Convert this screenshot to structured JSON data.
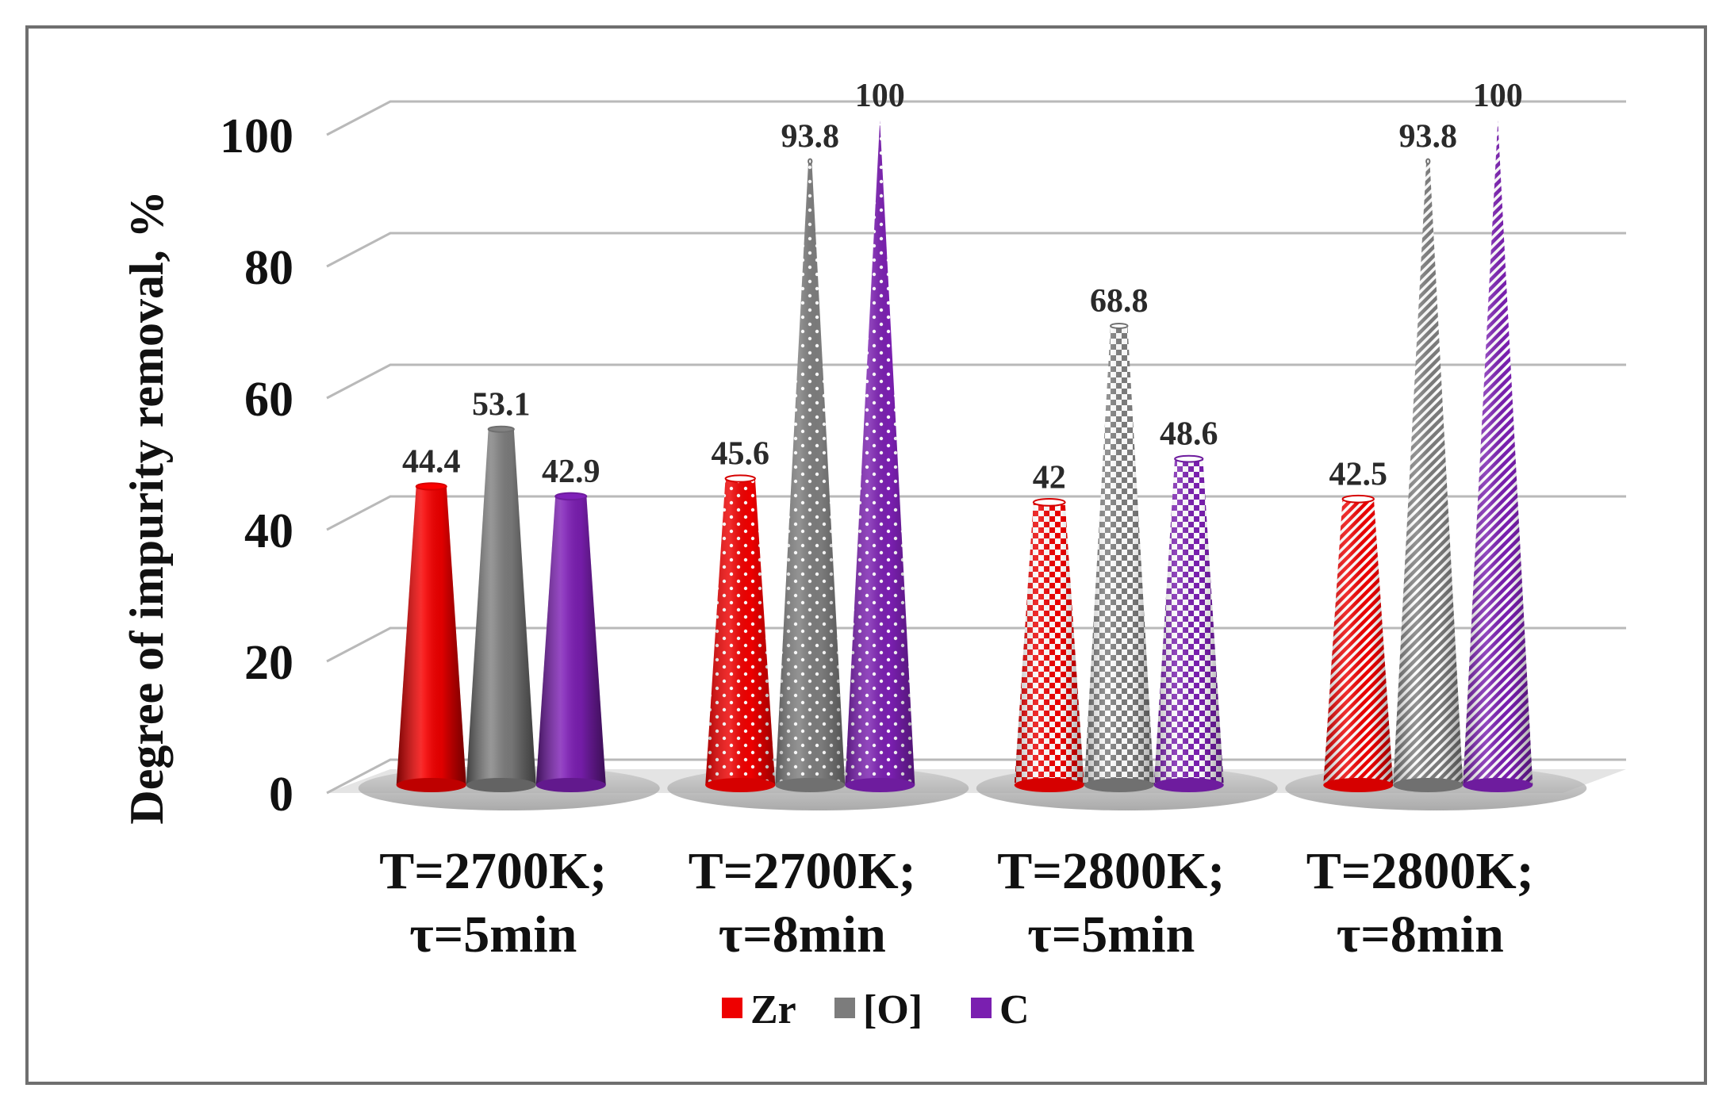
{
  "chart_data": {
    "type": "bar",
    "style": "3d-cone",
    "categories": [
      "T=2700K;\nτ=5min",
      "T=2700K;\nτ=8min",
      "T=2800K;\nτ=5min",
      "T=2800K;\nτ=8min"
    ],
    "series": [
      {
        "name": "Zr",
        "values": [
          44.4,
          45.6,
          42,
          42.5
        ]
      },
      {
        "name": "[O]",
        "values": [
          53.1,
          93.8,
          68.8,
          93.8
        ]
      },
      {
        "name": "C",
        "values": [
          42.9,
          100,
          48.6,
          100
        ]
      }
    ],
    "title": "",
    "xlabel": "",
    "ylabel": "Degree of impurity removal, %",
    "ylim": [
      0,
      100
    ],
    "yticks": [
      0,
      20,
      40,
      60,
      80,
      100
    ],
    "grid": true,
    "legend_position": "bottom-center"
  },
  "colors": {
    "Zr": "#ee0000",
    "[O]": "#7c7c7c",
    "C": "#7a1fb0",
    "grid": "#b9b9b9",
    "floor": "#9c9c9c"
  },
  "patterns_by_category": [
    "solid",
    "dots",
    "checker",
    "diagonal"
  ]
}
